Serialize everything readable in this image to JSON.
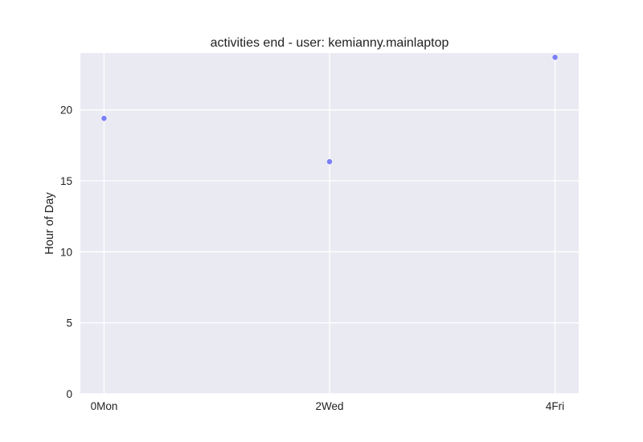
{
  "chart_data": {
    "type": "scatter",
    "title": "activities end - user: kemianny.mainlaptop",
    "xlabel": "",
    "ylabel": "Hour of Day",
    "x_ticks": [
      {
        "value": 0,
        "label": "0Mon"
      },
      {
        "value": 2,
        "label": "2Wed"
      },
      {
        "value": 4,
        "label": "4Fri"
      }
    ],
    "y_ticks": [
      0,
      5,
      10,
      15,
      20
    ],
    "xlim": [
      -0.21,
      4.21
    ],
    "ylim": [
      0,
      24
    ],
    "grid": true,
    "background_color": "#eaeaf2",
    "grid_color": "#ffffff",
    "point_color": "#7b7ff7",
    "series": [
      {
        "points": [
          {
            "x": 0,
            "y": 19.4
          },
          {
            "x": 2,
            "y": 16.35
          },
          {
            "x": 4,
            "y": 23.7
          }
        ]
      }
    ]
  }
}
